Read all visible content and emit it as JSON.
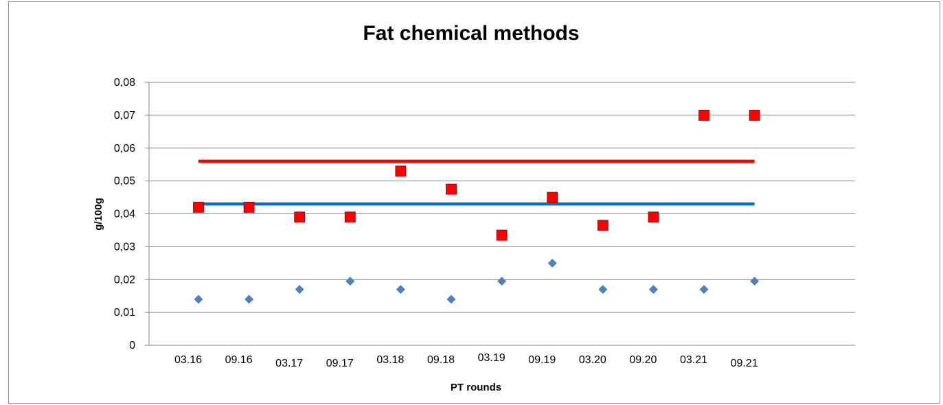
{
  "chart_data": {
    "type": "scatter",
    "title": "Fat chemical methods",
    "xlabel": "PT rounds",
    "ylabel": "g/100g",
    "categories": [
      "03.16",
      "09.16",
      "03.17",
      "09.17",
      "03.18",
      "09.18",
      "03.19",
      "09.19",
      "03.20",
      "09.20",
      "03.21",
      "09.21"
    ],
    "ylim": [
      0,
      0.08
    ],
    "yticks": [
      0,
      0.01,
      0.02,
      0.03,
      0.04,
      0.05,
      0.06,
      0.07,
      0.08
    ],
    "ytick_labels": [
      "0",
      "0,01",
      "0,02",
      "0,03",
      "0,04",
      "0,05",
      "0,06",
      "0,07",
      "0,08"
    ],
    "grid": "horizontal",
    "series": [
      {
        "marker": "square",
        "color": "#ff0000",
        "values": [
          0.042,
          0.042,
          0.039,
          0.039,
          0.053,
          0.0475,
          0.0335,
          0.045,
          0.0365,
          0.039,
          0.07,
          0.07
        ]
      },
      {
        "marker": "diamond",
        "color": "#4f81bd",
        "values": [
          0.014,
          0.014,
          0.017,
          0.0195,
          0.017,
          0.014,
          0.0195,
          0.025,
          0.017,
          0.017,
          0.017,
          0.0195
        ]
      },
      {
        "type": "line",
        "color": "#ff0000",
        "values": [
          0.056,
          0.056,
          0.056,
          0.056,
          0.056,
          0.056,
          0.056,
          0.056,
          0.056,
          0.056,
          0.056,
          0.056
        ]
      },
      {
        "type": "line",
        "color": "#0070c0",
        "values": [
          0.043,
          0.043,
          0.043,
          0.043,
          0.043,
          0.043,
          0.043,
          0.043,
          0.043,
          0.043,
          0.043,
          0.043
        ]
      }
    ]
  }
}
